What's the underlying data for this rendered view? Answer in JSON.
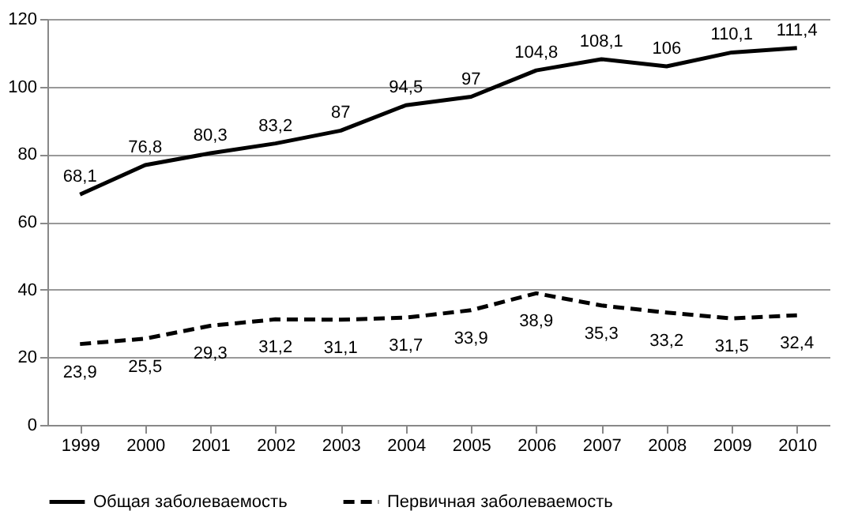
{
  "chart_data": {
    "type": "line",
    "categories": [
      "1999",
      "2000",
      "2001",
      "2002",
      "2003",
      "2004",
      "2005",
      "2006",
      "2007",
      "2008",
      "2009",
      "2010"
    ],
    "series": [
      {
        "name": "Общая заболеваемость",
        "color": "#000000",
        "line_style": "solid",
        "values": [
          68.1,
          76.8,
          80.3,
          83.2,
          87,
          94.5,
          97,
          104.8,
          108.1,
          106,
          110.1,
          111.4
        ],
        "value_labels": [
          "68,1",
          "76,8",
          "80,3",
          "83,2",
          "87",
          "94,5",
          "97",
          "104,8",
          "108,1",
          "106",
          "110,1",
          "111,4"
        ]
      },
      {
        "name": "Первичная заболеваемость",
        "color": "#000000",
        "line_style": "dashed",
        "values": [
          23.9,
          25.5,
          29.3,
          31.2,
          31.1,
          31.7,
          33.9,
          38.9,
          35.3,
          33.2,
          31.5,
          32.4
        ],
        "value_labels": [
          "23,9",
          "25,5",
          "29,3",
          "31,2",
          "31,1",
          "31,7",
          "33,9",
          "38,9",
          "35,3",
          "33,2",
          "31,5",
          "32,4"
        ]
      }
    ],
    "ylim": [
      0,
      120
    ],
    "yticks": [
      0,
      20,
      40,
      60,
      80,
      100,
      120
    ],
    "grid": "y",
    "legend": "bottom",
    "marker": "none"
  }
}
